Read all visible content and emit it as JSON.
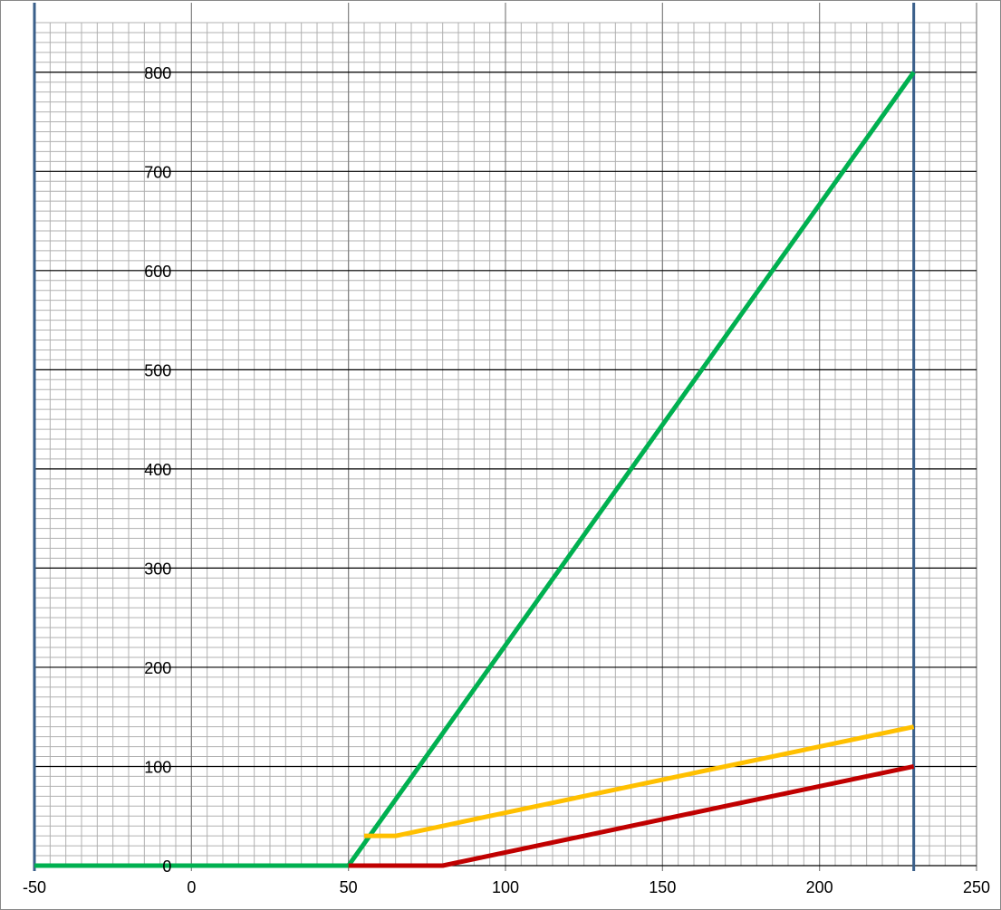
{
  "chart_data": {
    "type": "line",
    "title": "",
    "xlabel": "",
    "ylabel": "",
    "xlim": [
      -50,
      250
    ],
    "ylim": [
      0,
      850
    ],
    "x_ticks": [
      -50,
      0,
      50,
      100,
      150,
      200,
      250
    ],
    "y_ticks": [
      0,
      100,
      200,
      300,
      400,
      500,
      600,
      700,
      800
    ],
    "x_tick_labels": [
      "-50",
      "0",
      "50",
      "100",
      "150",
      "200",
      "250"
    ],
    "y_tick_labels": [
      "0",
      "100",
      "200",
      "300",
      "400",
      "500",
      "600",
      "700",
      "800"
    ],
    "grid": true,
    "minor_grid_step_x": 5,
    "minor_grid_step_y": 10,
    "legend": "none",
    "vertical_markers": [
      {
        "x": -50,
        "color": "#3a5f8a"
      },
      {
        "x": 230,
        "color": "#3a5f8a"
      }
    ],
    "series": [
      {
        "color": "#00b050",
        "x": [
          -50,
          50,
          230
        ],
        "y": [
          0,
          0,
          800
        ]
      },
      {
        "color": "#ffc000",
        "x": [
          55,
          65,
          230
        ],
        "y": [
          30,
          30,
          140
        ]
      },
      {
        "color": "#c00000",
        "x": [
          50,
          80,
          230
        ],
        "y": [
          0,
          0,
          100
        ]
      }
    ]
  }
}
